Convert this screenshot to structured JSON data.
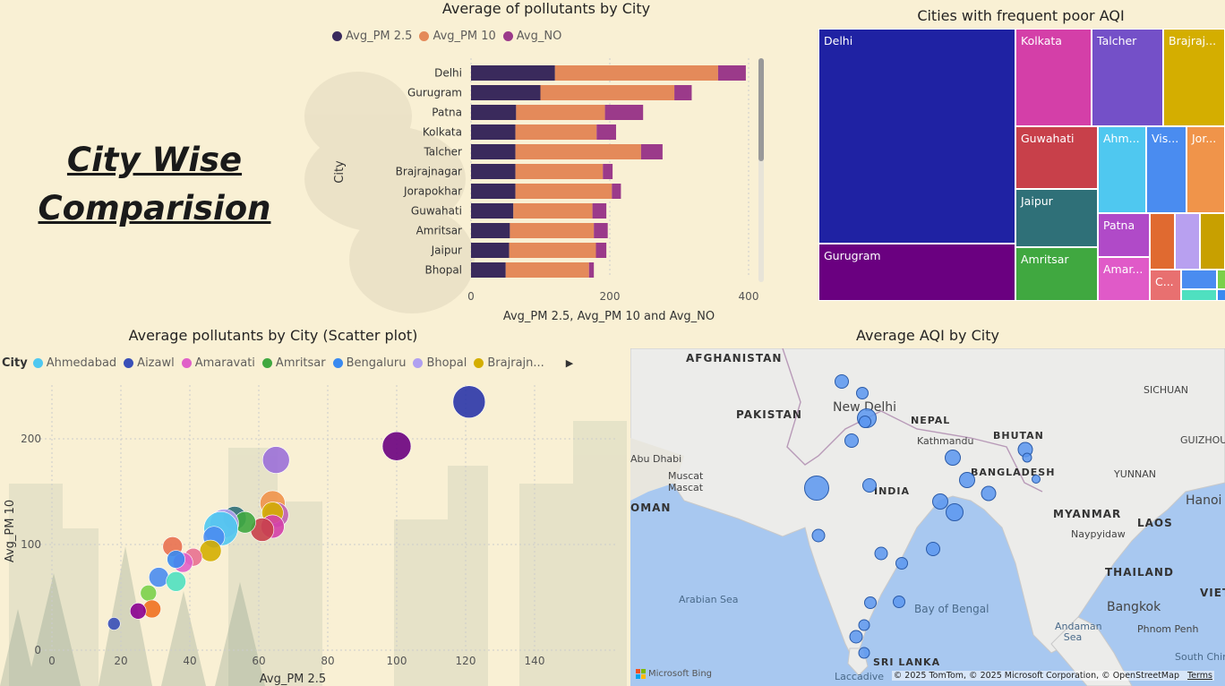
{
  "page_title": "City Wise Comparision",
  "bar_chart": {
    "title": "Average of pollutants by City",
    "legend": [
      {
        "name": "Avg_PM 2.5",
        "color": "#3a2a5c"
      },
      {
        "name": "Avg_PM 10",
        "color": "#e48a5a"
      },
      {
        "name": "Avg_NO",
        "color": "#9b3a8a"
      }
    ],
    "ylabel": "City",
    "xlabel": "Avg_PM 2.5, Avg_PM 10 and Avg_NO",
    "ticks": [
      "0",
      "200",
      "400"
    ]
  },
  "treemap": {
    "title": "Cities with frequent poor AQI",
    "cells": [
      {
        "label": "Delhi",
        "color": "#1f22a3"
      },
      {
        "label": "Gurugram",
        "color": "#6a0080"
      },
      {
        "label": "Kolkata",
        "color": "#d43fa8"
      },
      {
        "label": "Talcher",
        "color": "#7450c8"
      },
      {
        "label": "Brajraj...",
        "color": "#d4ae00"
      },
      {
        "label": "Guwahati",
        "color": "#c8404a"
      },
      {
        "label": "Ahm...",
        "color": "#4fc8f0"
      },
      {
        "label": "Vis...",
        "color": "#4a8cf0"
      },
      {
        "label": "Jor...",
        "color": "#f0944a"
      },
      {
        "label": "Jaipur",
        "color": "#2f7078"
      },
      {
        "label": "Patna",
        "color": "#b04ac8"
      },
      {
        "label": "Amritsar",
        "color": "#40a840"
      },
      {
        "label": "Amar...",
        "color": "#e05ac8"
      },
      {
        "label": "C...",
        "color": "#e87070"
      }
    ]
  },
  "scatter": {
    "title": "Average pollutants by City (Scatter plot)",
    "legend_label": "City",
    "legend": [
      {
        "name": "Ahmedabad",
        "color": "#4fc8f0"
      },
      {
        "name": "Aizawl",
        "color": "#3a50b8"
      },
      {
        "name": "Amaravati",
        "color": "#e060c8"
      },
      {
        "name": "Amritsar",
        "color": "#40a840"
      },
      {
        "name": "Bengaluru",
        "color": "#3a8af0"
      },
      {
        "name": "Bhopal",
        "color": "#b0a0f0"
      },
      {
        "name": "Brajrajn...",
        "color": "#d4ae00"
      }
    ],
    "xlabel": "Avg_PM 2.5",
    "ylabel": "Avg_PM 10",
    "xticks": [
      "0",
      "20",
      "40",
      "60",
      "80",
      "100",
      "120",
      "140"
    ],
    "yticks": [
      "0",
      "100",
      "200"
    ]
  },
  "map": {
    "title": "Average AQI by City",
    "labels": {
      "afghanistan": "AFGHANISTAN",
      "pakistan": "PAKISTAN",
      "nepal": "NEPAL",
      "bhutan": "BHUTAN",
      "bangladesh": "BANGLADESH",
      "india": "INDIA",
      "myanmar": "MYANMAR",
      "laos": "LAOS",
      "thailand": "THAILAND",
      "vietnam": "VIETN",
      "sri_lanka": "SRI LANKA",
      "oman": "OMAN",
      "new_delhi": "New Delhi",
      "kathmandu": "Kathmandu",
      "abu_dhabi": "Abu Dhabi",
      "muscat": "Muscat",
      "muscat2": "Mascat",
      "sichuan": "SICHUAN",
      "guizhou": "GUIZHOU",
      "yunnan": "YUNNAN",
      "hanoi": "Hanoi",
      "naypyidaw": "Naypyidaw",
      "bangkok": "Bangkok",
      "phnom_penh": "Phnom Penh",
      "arabian_sea": "Arabian Sea",
      "bay_of_bengal": "Bay of Bengal",
      "andaman_sea": "Andaman Sea",
      "laccadive": "Laccadive",
      "south_china": "South China"
    },
    "bing": "Microsoft Bing",
    "copyright": "© 2025 TomTom, © 2025 Microsoft Corporation, © OpenStreetMap",
    "terms": "Terms"
  },
  "chart_data": [
    {
      "type": "bar",
      "title": "Average of pollutants by City",
      "orientation": "horizontal",
      "stacked": true,
      "categories": [
        "Delhi",
        "Gurugram",
        "Patna",
        "Kolkata",
        "Talcher",
        "Brajrajnagar",
        "Jorapokhar",
        "Guwahati",
        "Amritsar",
        "Jaipur",
        "Bhopal"
      ],
      "series": [
        {
          "name": "Avg_PM 2.5",
          "color": "#3a2a5c",
          "values": [
            121,
            100,
            65,
            64,
            64,
            64,
            64,
            61,
            56,
            55,
            50
          ]
        },
        {
          "name": "Avg_PM 10",
          "color": "#e48a5a",
          "values": [
            235,
            193,
            128,
            117,
            181,
            126,
            139,
            114,
            121,
            125,
            120
          ]
        },
        {
          "name": "Avg_NO",
          "color": "#9b3a8a",
          "values": [
            40,
            25,
            55,
            28,
            31,
            14,
            13,
            20,
            20,
            15,
            7
          ]
        }
      ],
      "xlabel": "Avg_PM 2.5, Avg_PM 10 and Avg_NO",
      "ylabel": "City",
      "xlim": [
        0,
        420
      ],
      "xticks": [
        0,
        200,
        400
      ],
      "legend": "top"
    },
    {
      "type": "scatter",
      "title": "Average pollutants by City (Scatter plot)",
      "xlabel": "Avg_PM 2.5",
      "ylabel": "Avg_PM 10",
      "xlim": [
        -10,
        150
      ],
      "ylim": [
        -5,
        250
      ],
      "xticks": [
        0,
        20,
        40,
        60,
        80,
        100,
        120,
        140
      ],
      "yticks": [
        0,
        100,
        200
      ],
      "points": [
        {
          "x": 121,
          "y": 235,
          "r": 18,
          "color": "#2a35a8"
        },
        {
          "x": 100,
          "y": 193,
          "r": 16,
          "color": "#6a0080"
        },
        {
          "x": 65,
          "y": 180,
          "r": 15,
          "color": "#9b70d8"
        },
        {
          "x": 64,
          "y": 139,
          "r": 14,
          "color": "#f0944a"
        },
        {
          "x": 65,
          "y": 128,
          "r": 14,
          "color": "#c060b0"
        },
        {
          "x": 64,
          "y": 130,
          "r": 12,
          "color": "#d4ae00"
        },
        {
          "x": 64,
          "y": 117,
          "r": 13,
          "color": "#d43fa8"
        },
        {
          "x": 61,
          "y": 114,
          "r": 13,
          "color": "#c8404a"
        },
        {
          "x": 53,
          "y": 125,
          "r": 13,
          "color": "#2f7078"
        },
        {
          "x": 56,
          "y": 121,
          "r": 12,
          "color": "#40a840"
        },
        {
          "x": 50,
          "y": 120,
          "r": 16,
          "color": "#b0a0f0"
        },
        {
          "x": 49,
          "y": 115,
          "r": 19,
          "color": "#4fc8f0"
        },
        {
          "x": 47,
          "y": 107,
          "r": 12,
          "color": "#4a8cf0"
        },
        {
          "x": 46,
          "y": 94,
          "r": 12,
          "color": "#d4ae00"
        },
        {
          "x": 35,
          "y": 98,
          "r": 11,
          "color": "#e87050"
        },
        {
          "x": 41,
          "y": 88,
          "r": 10,
          "color": "#e87090"
        },
        {
          "x": 38,
          "y": 83,
          "r": 11,
          "color": "#e060c8"
        },
        {
          "x": 36,
          "y": 86,
          "r": 10,
          "color": "#3a8af0"
        },
        {
          "x": 31,
          "y": 69,
          "r": 11,
          "color": "#4a8cf0"
        },
        {
          "x": 36,
          "y": 65,
          "r": 11,
          "color": "#4fe0c0"
        },
        {
          "x": 28,
          "y": 54,
          "r": 9,
          "color": "#7ad04a"
        },
        {
          "x": 29,
          "y": 39,
          "r": 10,
          "color": "#f07020"
        },
        {
          "x": 25,
          "y": 37,
          "r": 9,
          "color": "#8a0090"
        },
        {
          "x": 18,
          "y": 25,
          "r": 7,
          "color": "#3a50b8"
        }
      ]
    }
  ]
}
